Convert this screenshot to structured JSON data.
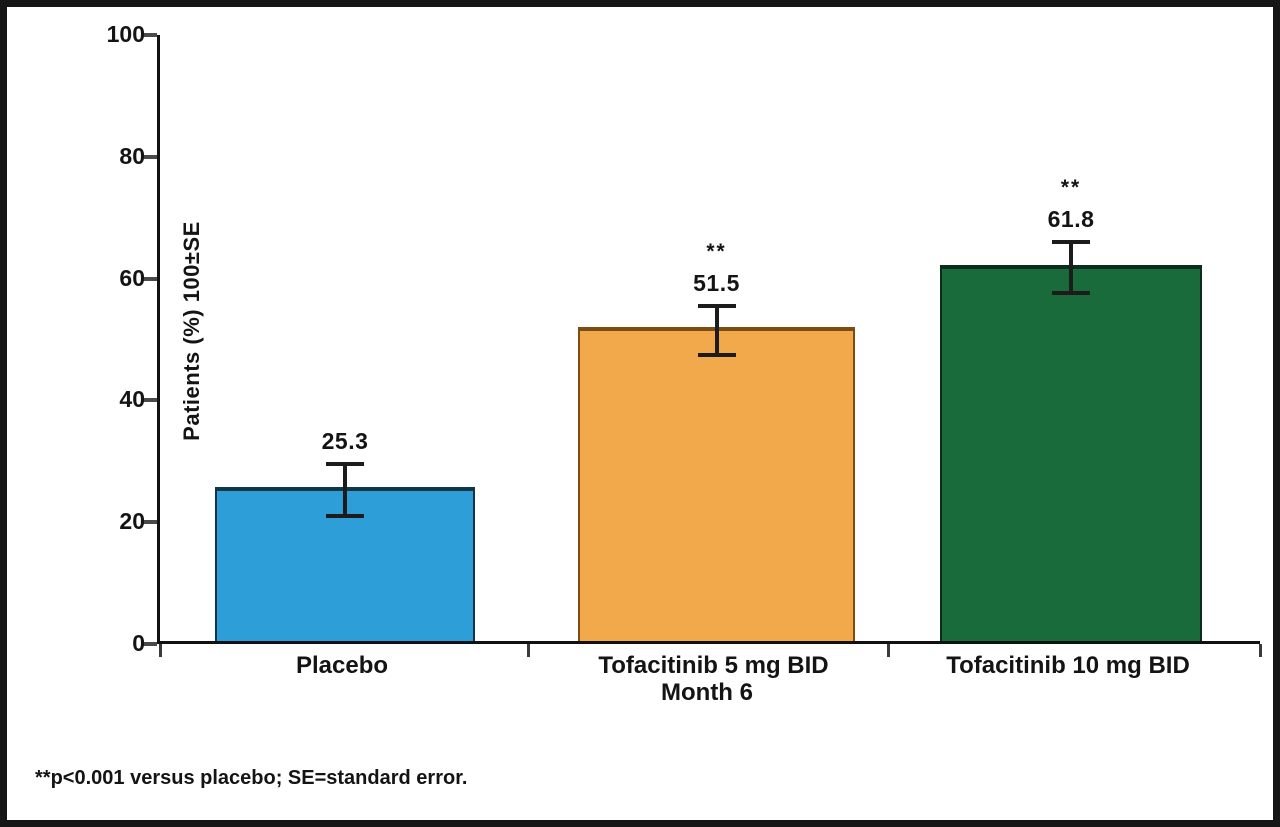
{
  "frame": {
    "background_color": "#ffffff",
    "border_color": "#161616",
    "text_color": "#141414",
    "axis_color": "#111111"
  },
  "chart_data": {
    "type": "bar",
    "title": "",
    "categories": [
      "Placebo",
      "Tofacitinib 5 mg BID",
      "Tofacitinib 10 mg BID"
    ],
    "values": [
      25.3,
      51.5,
      61.8
    ],
    "value_labels": [
      "25.3",
      "51.5",
      "61.8"
    ],
    "significance_markers": [
      "",
      "**",
      "**"
    ],
    "standard_errors": [
      4.2,
      4.0,
      4.2
    ],
    "bar_colors": [
      "#2E9ED9",
      "#F2A94C",
      "#1A6B3C"
    ],
    "bar_border_colors": [
      "#123647",
      "#7B4D15",
      "#0B2E1C"
    ],
    "xlabel": "Month 6",
    "ylabel": "Patients (%) 100±SE",
    "ylim": [
      0,
      100
    ],
    "yticks": [
      0,
      20,
      40,
      60,
      80,
      100
    ],
    "grid": false,
    "legend": null,
    "error_bars": true
  },
  "footnote": "**p<0.001 versus placebo; SE=standard error."
}
